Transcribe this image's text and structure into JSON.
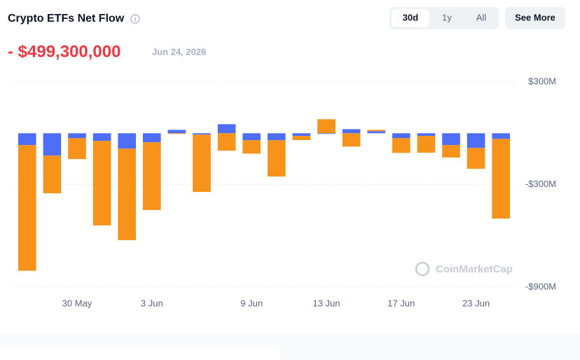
{
  "header": {
    "title": "Crypto ETFs Net Flow",
    "ranges": [
      "30d",
      "1y",
      "All"
    ],
    "more": "See More",
    "value": "- $499,300,000",
    "date": "Jun 24, 2026"
  },
  "chart_data": {
    "type": "bar",
    "stacked": true,
    "watermark": "CoinMarketCap",
    "categories": [
      null,
      null,
      "30 May",
      null,
      null,
      "3 Jun",
      null,
      null,
      null,
      "9 Jun",
      null,
      null,
      "13 Jun",
      null,
      null,
      "17 Jun",
      null,
      null,
      "23 Jun",
      null
    ],
    "series": [
      {
        "color": "#4f6ef7",
        "values": [
          -69,
          -131,
          -29,
          -45,
          -90,
          -53,
          20,
          -8,
          53,
          -41,
          -41,
          -16,
          -4,
          24,
          12,
          -29,
          -16,
          -69,
          -86,
          -33
        ]
      },
      {
        "color": "#f7931a",
        "values": [
          -735,
          -220,
          -122,
          -494,
          -535,
          -396,
          -4,
          -335,
          -102,
          -78,
          -212,
          -24,
          82,
          -78,
          8,
          -86,
          -98,
          -73,
          -122,
          -466
        ]
      }
    ],
    "ylim": [
      -900,
      300
    ],
    "yticks": [
      {
        "value": 300,
        "label": "$300M"
      },
      {
        "value": -300,
        "label": "-$300M"
      },
      {
        "value": -900,
        "label": "-$900M"
      }
    ],
    "grid": true
  }
}
